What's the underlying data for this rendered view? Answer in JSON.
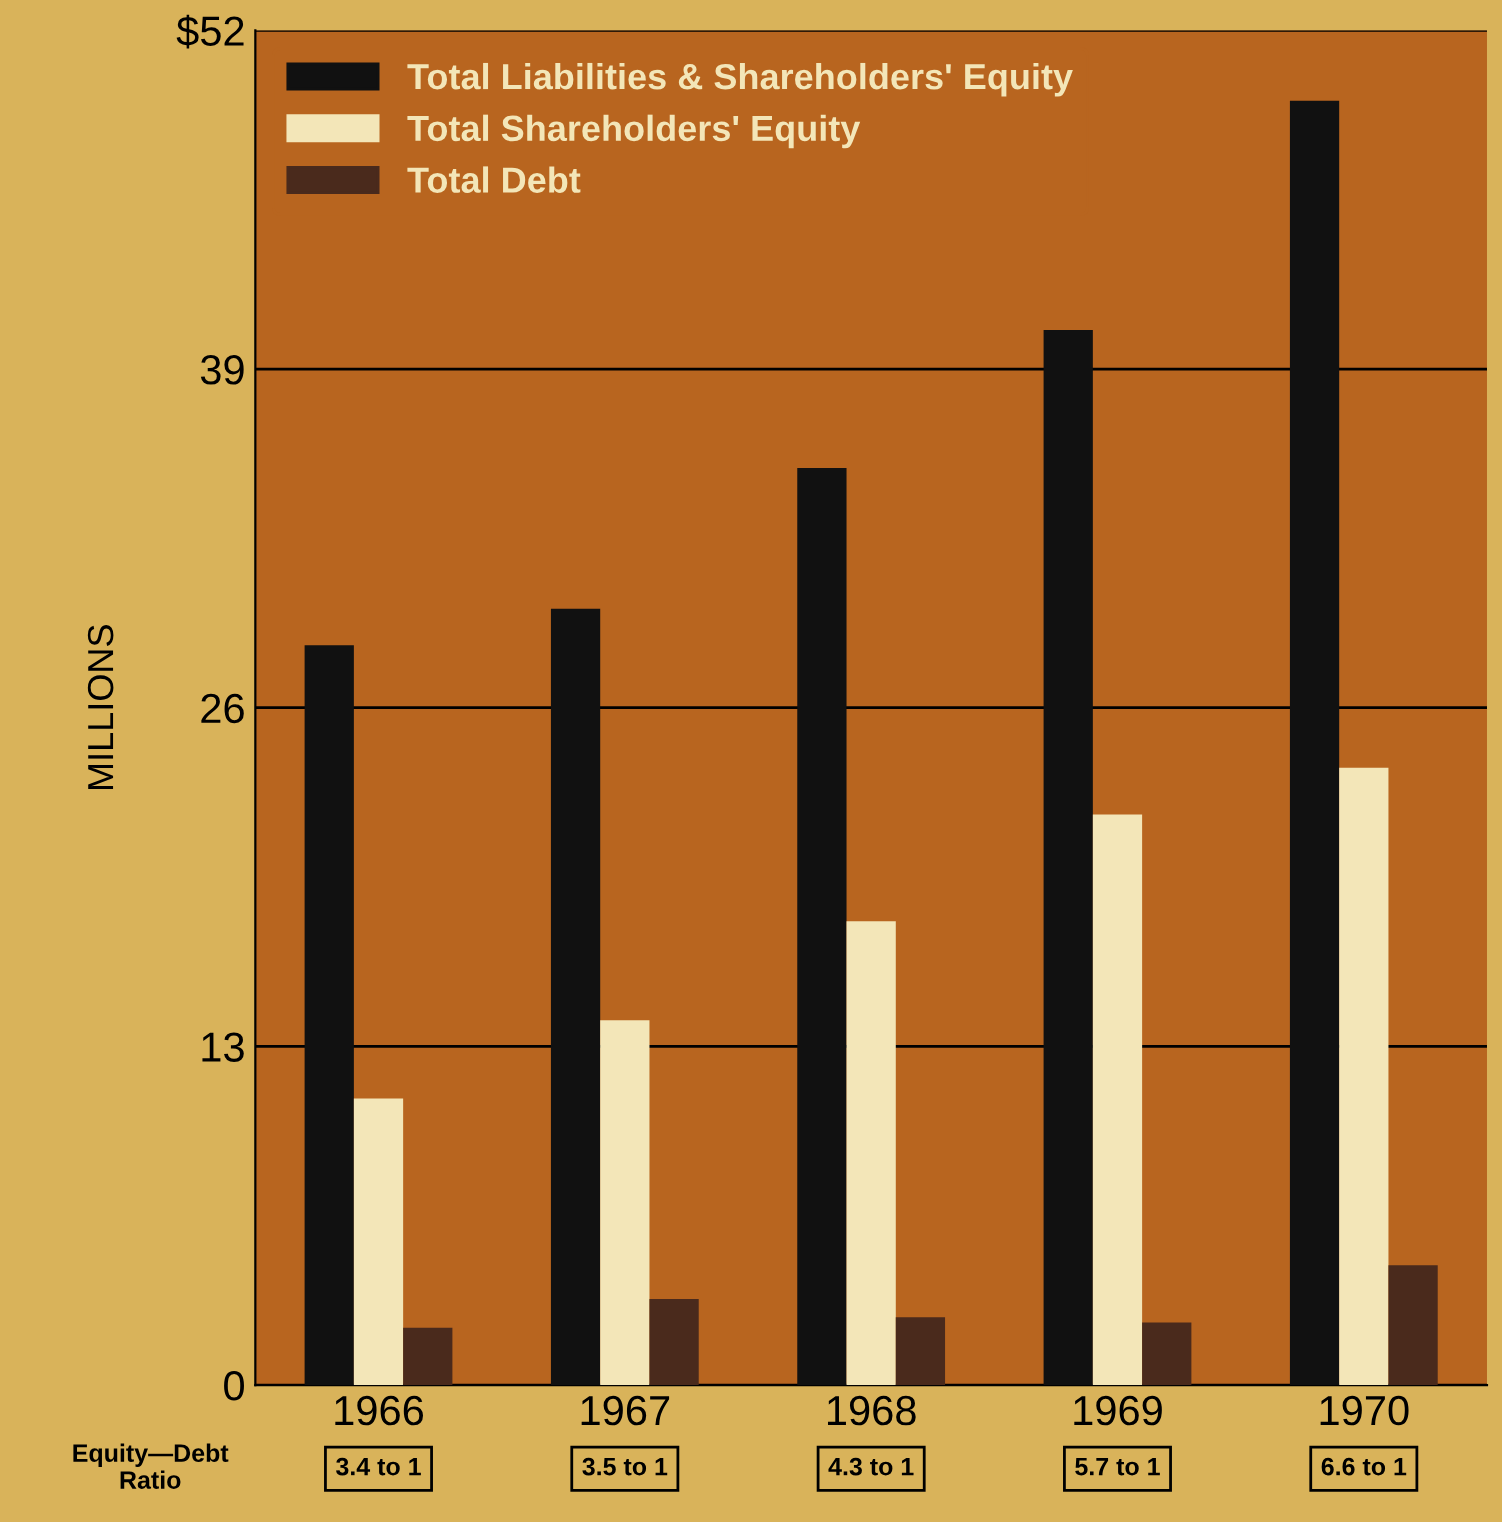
{
  "chart_data": {
    "type": "bar",
    "ylabel": "MILLIONS",
    "categories": [
      "1966",
      "1967",
      "1968",
      "1969",
      "1970"
    ],
    "series": [
      {
        "name": "Total Liabilities & Shareholders' Equity",
        "color": "#111111",
        "values": [
          28.4,
          29.8,
          35.2,
          40.5,
          49.3
        ]
      },
      {
        "name": "Total Shareholders' Equity",
        "color": "#f3e6b8",
        "values": [
          11.0,
          14.0,
          17.8,
          21.9,
          23.7
        ]
      },
      {
        "name": "Total Debt",
        "color": "#4a2a1c",
        "values": [
          2.2,
          3.3,
          2.6,
          2.4,
          4.6
        ]
      }
    ],
    "ylim": [
      0,
      52
    ],
    "yticks": [
      0,
      13,
      26,
      39,
      {
        "value": 52,
        "label": "$52"
      }
    ],
    "grid": "y",
    "legend": "top left",
    "annotations": [
      "Equity—Debt\nRatio",
      "3.4 to 1",
      "3.5 to 1",
      "4.3 to 1",
      "5.7 to 1",
      "6.6 to 1"
    ]
  }
}
